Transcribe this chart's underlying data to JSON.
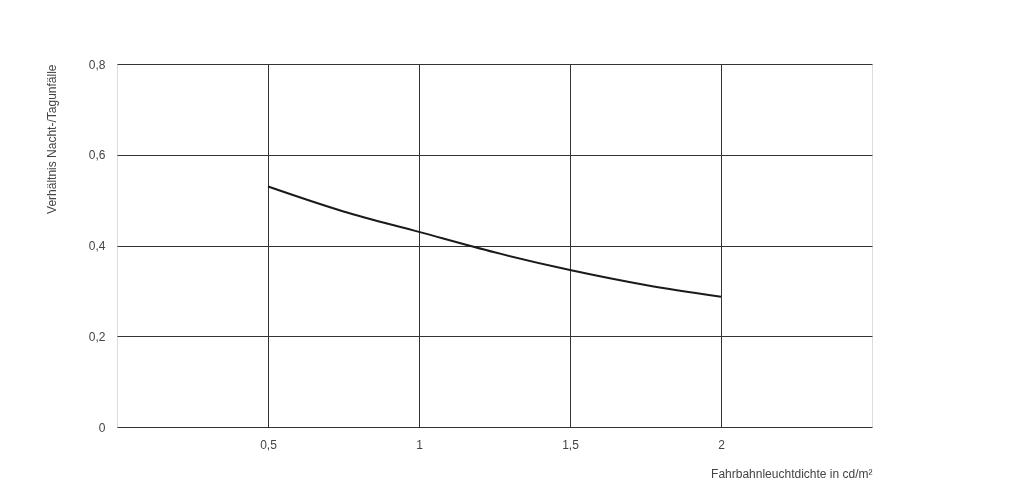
{
  "chart_data": {
    "type": "line",
    "xlabel": "Fahrbahnleuchtdichte in cd/m²",
    "ylabel": "Verhältnis Nacht-/Tagunfälle",
    "series": [
      {
        "color": "#1a1a1a",
        "x": [
          0.5,
          0.75,
          1,
          1.25,
          1.5,
          1.75,
          2
        ],
        "values": [
          0.53,
          0.475,
          0.43,
          0.385,
          0.346,
          0.313,
          0.287
        ]
      }
    ],
    "xlim": [
      0,
      2.5
    ],
    "xticks": [
      {
        "value": 0.5,
        "label": "0,5"
      },
      1,
      {
        "value": 1.5,
        "label": "1,5"
      },
      2
    ],
    "ylim": [
      0,
      0.8
    ],
    "yticks": [
      0,
      {
        "value": 0.2,
        "label": "0,2"
      },
      {
        "value": 0.4,
        "label": "0,4"
      },
      {
        "value": 0.6,
        "label": "0,6"
      },
      {
        "value": 0.8,
        "label": "0,8"
      }
    ],
    "grid": true,
    "marker": "none",
    "line_style": "solid"
  }
}
